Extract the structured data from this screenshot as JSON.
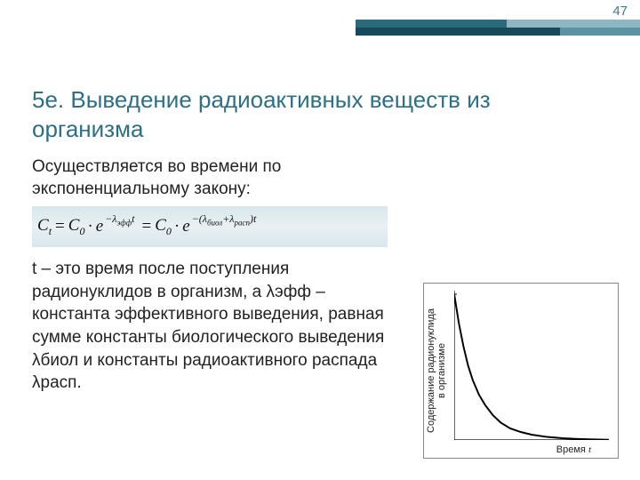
{
  "page_number": "47",
  "heading": "5е. Выведение радиоактивных веществ из организма",
  "intro": "Осуществляется во времени по экспоненциальному закону:",
  "formula": {
    "lhs_var": "C",
    "lhs_sub": "t",
    "c0_var": "C",
    "c0_sub": "0",
    "exp1": "−λ",
    "exp1_sub": "эфф",
    "exp1_tail": "t",
    "exp2_pre": "−(λ",
    "exp2_sub1": "биол",
    "exp2_mid": "+λ",
    "exp2_sub2": "расп",
    "exp2_post": ")t",
    "e": "e",
    "dot": "·",
    "eq": "="
  },
  "body": "t – это время после поступления радионуклидов в организм, а λэфф – константа эффективного выведения, равная сумме константы биологического выведения λбиол и константы радиоактивного распада λрасп.",
  "chart": {
    "type": "line",
    "ylabel_l1": "Содержание радионуклида",
    "ylabel_l2": "в организме",
    "xlabel_pre": "Время ",
    "xlabel_var": "t",
    "xlim": [
      0,
      10
    ],
    "ylim": [
      0,
      1
    ],
    "line_color": "#000000",
    "line_width": 2,
    "axis_color": "#000000",
    "background_color": "#ffffff",
    "points": [
      [
        0.0,
        1.0
      ],
      [
        0.3,
        0.8
      ],
      [
        0.6,
        0.64
      ],
      [
        0.9,
        0.51
      ],
      [
        1.2,
        0.41
      ],
      [
        1.6,
        0.31
      ],
      [
        2.0,
        0.24
      ],
      [
        2.5,
        0.17
      ],
      [
        3.0,
        0.12
      ],
      [
        3.6,
        0.08
      ],
      [
        4.3,
        0.055
      ],
      [
        5.0,
        0.037
      ],
      [
        6.0,
        0.021
      ],
      [
        7.0,
        0.012
      ],
      [
        8.0,
        0.007
      ],
      [
        9.0,
        0.004
      ],
      [
        10.0,
        0.002
      ]
    ]
  },
  "accent": {
    "upper_dark": "#2b6a7d",
    "upper_light": "#8fb7c3",
    "lower_dark": "#164a5a",
    "lower_light": "#5c93a3"
  }
}
